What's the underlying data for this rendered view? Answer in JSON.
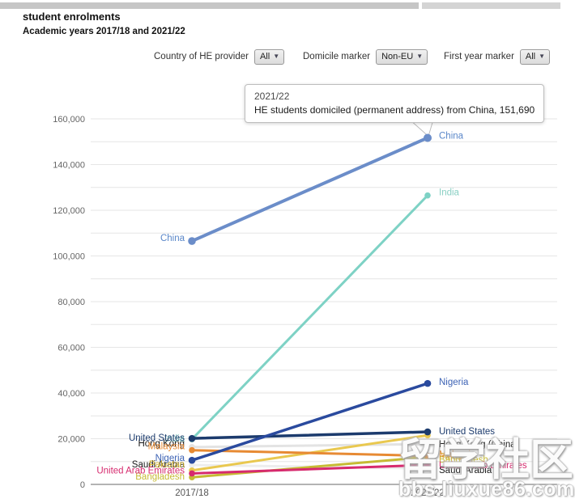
{
  "header": {
    "title": "student enrolments",
    "subtitle": "Academic years 2017/18 and 2021/22"
  },
  "filters": [
    {
      "label": "Country of HE provider",
      "value": "All"
    },
    {
      "label": "Domicile marker",
      "value": "Non-EU"
    },
    {
      "label": "First year marker",
      "value": "All"
    }
  ],
  "tooltip": {
    "title": "2021/22",
    "body": "HE students domiciled (permanent address) from China, 151,690"
  },
  "watermark": {
    "line1": "留学社区",
    "line2": "bbs.liuxue86.com"
  },
  "chart_data": {
    "type": "line",
    "subtype": "slope-chart",
    "categories": [
      "2017/18",
      "2021/22"
    ],
    "ylim": [
      0,
      160000
    ],
    "ytick_step": 20000,
    "grid_step": 10000,
    "grid": true,
    "legend": "inline-series-labels",
    "xlabel": "",
    "ylabel": "",
    "series": [
      {
        "name": "Saudi Arabia",
        "values": [
          8500,
          7000
        ],
        "color": "#ededed",
        "label_color": "#1a1a1a",
        "width": 3,
        "labels": {
          "left": "Saudi Arabia",
          "right": "Saudi Arabia"
        },
        "dy": {
          "left": -1,
          "right": 2
        }
      },
      {
        "name": "Hong Kong (China)",
        "values": [
          16350,
          17630
        ],
        "color": "#e3e3e3",
        "label_color": "#1a1a1a",
        "width": 3,
        "labels": {
          "left": "Hong Kong",
          "right": "Hong Kong (China)"
        },
        "dy": {
          "left": -5,
          "right": 0
        }
      },
      {
        "name": "Bangladesh",
        "values": [
          3100,
          12000
        ],
        "color": "#c6bb34",
        "label_color": "#c6bb34",
        "width": 3,
        "labels": {
          "left": "Bangladesh",
          "right": "Bangladesh"
        },
        "dy": {
          "left": -1,
          "right": 3
        }
      },
      {
        "name": "Pakistan",
        "values": [
          6100,
          21500
        ],
        "color": "#e9c84f",
        "label_color": "#d3b22e",
        "width": 3,
        "labels": {
          "left": "Pakistan",
          "right": "Pakistan"
        },
        "dy": {
          "left": -8,
          "right": 26
        }
      },
      {
        "name": "Malaysia",
        "values": [
          14970,
          12500
        ],
        "color": "#e78a33",
        "label_color": "#e78a33",
        "width": 3,
        "labels": {
          "left": "Malaysia",
          "right": "Malaysia"
        },
        "dy": {
          "left": -5,
          "right": -2
        }
      },
      {
        "name": "United Arab Emirates",
        "values": [
          4800,
          8500
        ],
        "color": "#d62a6e",
        "label_color": "#d62a6e",
        "width": 3,
        "labels": {
          "left": "United Arab Emirates",
          "right": "United Arab Emirates"
        },
        "dy": {
          "left": -4,
          "right": 0
        }
      },
      {
        "name": "India",
        "values": [
          19750,
          126500
        ],
        "color": "#7ed2c5",
        "label_color": "#8ad0c4",
        "width": 3,
        "labels": {
          "left": "India",
          "right": "India"
        },
        "dy": {
          "left": -1,
          "right": -4
        }
      },
      {
        "name": "United States",
        "values": [
          20120,
          23000
        ],
        "color": "#1c3b6d",
        "label_color": "#1c3b6d",
        "width": 3.5,
        "labels": {
          "left": "United States",
          "right": "United States"
        },
        "dy": {
          "left": -1,
          "right": -1
        }
      },
      {
        "name": "Nigeria",
        "values": [
          10540,
          44200
        ],
        "color": "#2a4a9e",
        "label_color": "#3d63b5",
        "width": 3.5,
        "labels": {
          "left": "Nigeria",
          "right": "Nigeria"
        },
        "dy": {
          "left": -3,
          "right": -2
        }
      },
      {
        "name": "China",
        "values": [
          106530,
          151690
        ],
        "color": "#6b8dc9",
        "label_color": "#5a87c9",
        "width": 4,
        "labels": {
          "left": "China",
          "right": "China"
        },
        "dy": {
          "left": -4,
          "right": -3
        }
      }
    ]
  }
}
